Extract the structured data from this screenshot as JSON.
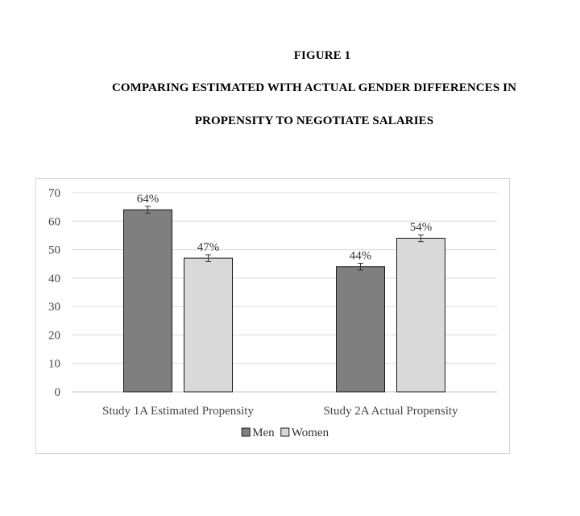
{
  "figure_label": "FIGURE 1",
  "title_line1": "COMPARING ESTIMATED WITH ACTUAL GENDER DIFFERENCES IN",
  "title_line2": "PROPENSITY TO NEGOTIATE SALARIES",
  "chart_data": {
    "type": "bar",
    "title": "",
    "xlabel": "",
    "ylabel": "",
    "ylim": [
      0,
      70
    ],
    "yticks": [
      0,
      10,
      20,
      30,
      40,
      50,
      60,
      70
    ],
    "grid": true,
    "legend_position": "bottom",
    "categories": [
      "Study 1A Estimated Propensity",
      "Study 2A Actual Propensity"
    ],
    "series": [
      {
        "name": "Men",
        "color": "#7f7f7f",
        "values": [
          64,
          44
        ],
        "labels": [
          "64%",
          "44%"
        ],
        "error": [
          1.2,
          1.2
        ]
      },
      {
        "name": "Women",
        "color": "#d9d9d9",
        "values": [
          47,
          54
        ],
        "labels": [
          "47%",
          "54%"
        ],
        "error": [
          1.2,
          1.2
        ]
      }
    ]
  }
}
